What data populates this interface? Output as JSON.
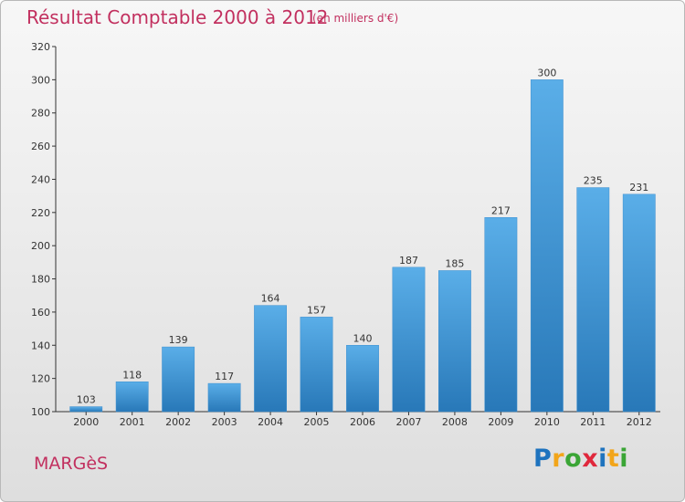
{
  "header": {
    "title": "Résultat Comptable 2000 à 2012",
    "unit": "(en milliers d'€)"
  },
  "footer": {
    "town": "MARGèS",
    "logo_letters": [
      "P",
      "r",
      "o",
      "x",
      "i",
      "t",
      "i"
    ],
    "logo_colors": [
      "#1e73be",
      "#f2a51a",
      "#3aa535",
      "#e0283c",
      "#1e73be",
      "#f2a51a",
      "#3aa535"
    ]
  },
  "colors": {
    "text_accent": "#c2305f",
    "bar_top": "#5aaee8",
    "bar_bottom": "#2878b8"
  },
  "chart_data": {
    "type": "bar",
    "title": "Résultat Comptable 2000 à 2012",
    "subtitle": "(en milliers d'€)",
    "xlabel": "",
    "ylabel": "",
    "categories": [
      "2000",
      "2001",
      "2002",
      "2003",
      "2004",
      "2005",
      "2006",
      "2007",
      "2008",
      "2009",
      "2010",
      "2011",
      "2012"
    ],
    "values": [
      103,
      118,
      139,
      117,
      164,
      157,
      140,
      187,
      185,
      217,
      300,
      235,
      231
    ],
    "ylim": [
      100,
      320
    ],
    "yticks": [
      100,
      120,
      140,
      160,
      180,
      200,
      220,
      240,
      260,
      280,
      300,
      320
    ],
    "grid": false,
    "legend": "none",
    "data_labels": true
  }
}
